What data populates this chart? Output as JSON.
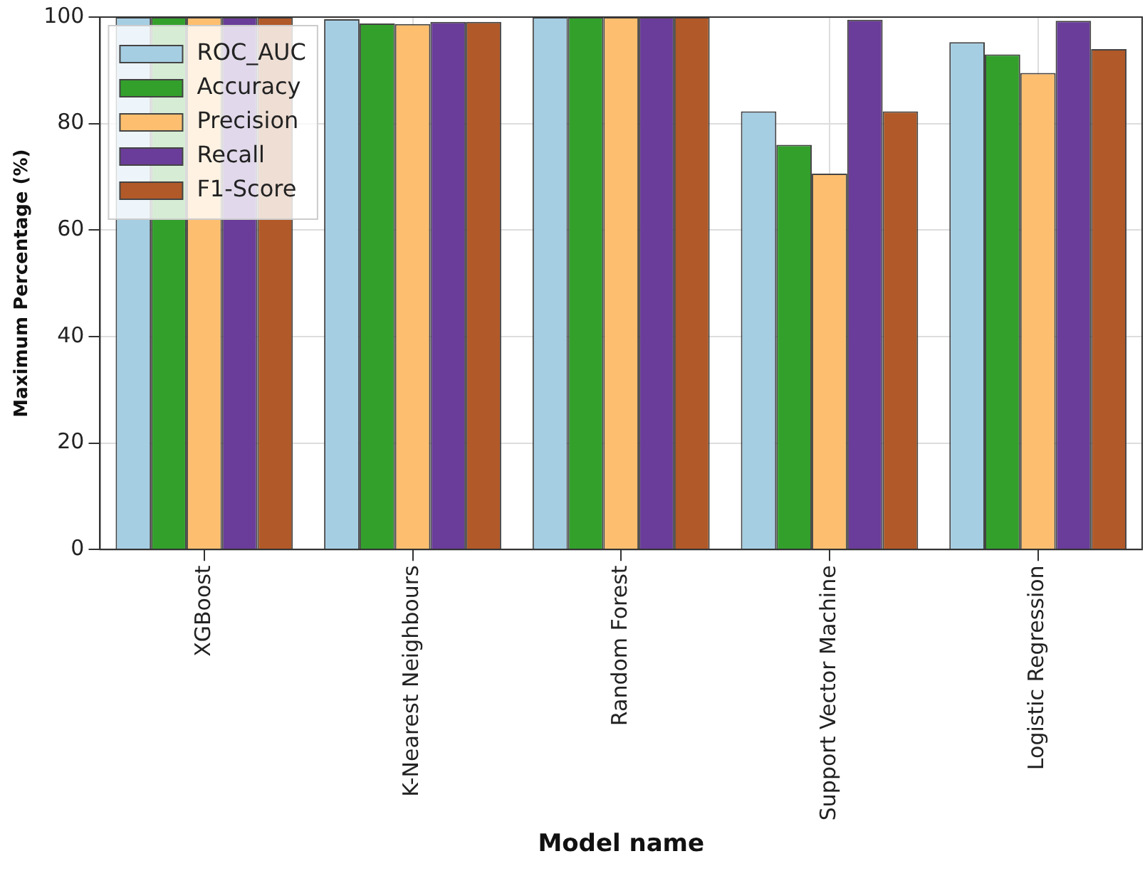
{
  "chart_data": {
    "type": "bar",
    "xlabel": "Model name",
    "ylabel": "Maximum Percentage (%)",
    "categories": [
      "XGBoost",
      "K-Nearest Neighbours",
      "Random Forest",
      "Support Vector Machine",
      "Logistic Regression"
    ],
    "series": [
      {
        "name": "ROC_AUC",
        "color": "#a6cee3",
        "values": [
          100,
          99.6,
          100,
          82.3,
          95.3
        ]
      },
      {
        "name": "Accuracy",
        "color": "#33a02c",
        "values": [
          100,
          98.8,
          100,
          76.0,
          93.0
        ]
      },
      {
        "name": "Precision",
        "color": "#fdbf6f",
        "values": [
          100,
          98.7,
          100,
          70.6,
          89.5
        ]
      },
      {
        "name": "Recall",
        "color": "#6a3d9a",
        "values": [
          100,
          99.1,
          100,
          99.5,
          99.3
        ]
      },
      {
        "name": "F1-Score",
        "color": "#b15928",
        "values": [
          100,
          99.1,
          100,
          82.3,
          94.0
        ]
      }
    ],
    "ylim": [
      0,
      100
    ],
    "yticks": [
      0,
      20,
      40,
      60,
      80,
      100
    ],
    "grid": true,
    "legend": "top left"
  }
}
